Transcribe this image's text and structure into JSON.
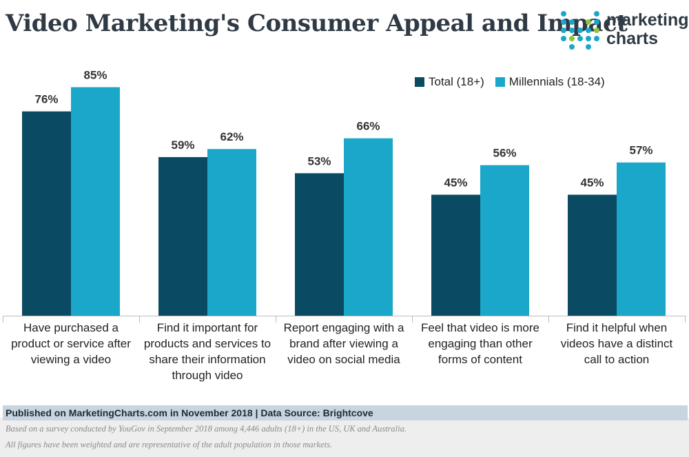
{
  "header": {
    "title": "Video Marketing's Consumer Appeal and Impact",
    "logo_line1": "marketing",
    "logo_line2": "charts"
  },
  "legend": [
    {
      "label": "Total (18+)",
      "color": "#0b4a63"
    },
    {
      "label": "Millennials (18-34)",
      "color": "#1ba7c9"
    }
  ],
  "chart_data": {
    "type": "bar",
    "categories": [
      [
        "Have purchased a",
        "product or service after",
        "viewing a video"
      ],
      [
        "Find it important for",
        "products and services to",
        "share their information",
        "through video"
      ],
      [
        "Report engaging with a",
        "brand after viewing a",
        "video on social media"
      ],
      [
        "Feel that video is more",
        "engaging than other",
        "forms of content"
      ],
      [
        "Find it helpful when",
        "videos have a distinct",
        "call to action"
      ]
    ],
    "series": [
      {
        "name": "Total (18+)",
        "values": [
          76,
          59,
          53,
          45,
          45
        ],
        "labels": [
          "76%",
          "59%",
          "53%",
          "45%",
          "45%"
        ],
        "color": "#0b4a63"
      },
      {
        "name": "Millennials (18-34)",
        "values": [
          85,
          62,
          66,
          56,
          57
        ],
        "labels": [
          "85%",
          "62%",
          "66%",
          "56%",
          "57%"
        ],
        "color": "#1ba7c9"
      }
    ],
    "ylim": [
      0,
      100
    ],
    "grid": false,
    "legend_position": "top-right"
  },
  "footer": {
    "published": "Published on MarketingCharts.com in November 2018 | Data Source: Brightcove",
    "note1": "Based on a survey conducted by YouGov in September 2018 among 4,446 adults (18+) in the US, UK and Australia.",
    "note2": "All figures have been weighted and are representative of the adult population in those markets."
  }
}
